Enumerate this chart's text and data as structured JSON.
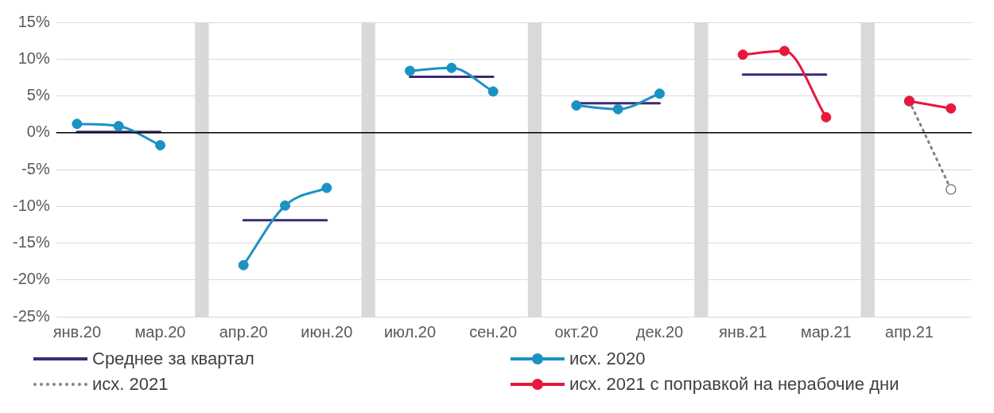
{
  "chart_data": {
    "type": "line",
    "categories": [
      "янв.20",
      null,
      "мар.20",
      null,
      "апр.20",
      null,
      "июн.20",
      null,
      "июл.20",
      null,
      "сен.20",
      null,
      "окт.20",
      null,
      "дек.20",
      null,
      "янв.21",
      null,
      "мар.21",
      null,
      "апр.21",
      null
    ],
    "series": [
      {
        "name": "Среднее за квартал",
        "color": "#3c2a77",
        "marker": "none",
        "values": [
          0.1,
          0.1,
          0.1,
          null,
          -11.9,
          -11.9,
          -11.9,
          null,
          7.6,
          7.6,
          7.6,
          null,
          4.0,
          4.0,
          4.0,
          null,
          7.9,
          7.9,
          7.9,
          null,
          null,
          null
        ]
      },
      {
        "name": "исх. 2020",
        "color": "#1a92c4",
        "marker": "circle",
        "values": [
          1.2,
          0.9,
          -1.7,
          null,
          -18.0,
          -9.9,
          -7.5,
          null,
          8.4,
          8.8,
          5.6,
          null,
          3.7,
          3.2,
          5.3,
          null,
          null,
          null,
          null,
          null,
          null,
          null
        ]
      },
      {
        "name": "исх. 2021",
        "color": "#808080",
        "marker": "circle",
        "line_style": "dotted",
        "values": [
          null,
          null,
          null,
          null,
          null,
          null,
          null,
          null,
          null,
          null,
          null,
          null,
          null,
          null,
          null,
          null,
          null,
          null,
          null,
          null,
          4.3,
          -7.7
        ]
      },
      {
        "name": "исх. 2021 с поправкой на нерабочие дни",
        "color": "#e8173c",
        "marker": "circle",
        "values": [
          null,
          null,
          null,
          null,
          null,
          null,
          null,
          null,
          null,
          null,
          null,
          null,
          null,
          null,
          null,
          null,
          10.6,
          11.1,
          2.1,
          null,
          4.3,
          3.3
        ]
      },
      {
        "type": "bar",
        "color": "#d9d9d9",
        "base": [
          null,
          null,
          null,
          -25,
          null,
          null,
          null,
          -25,
          null,
          null,
          null,
          -25,
          null,
          null,
          null,
          -25,
          null,
          null,
          null,
          -25,
          null,
          null
        ],
        "values": [
          null,
          null,
          null,
          40,
          null,
          null,
          null,
          40,
          null,
          null,
          null,
          40,
          null,
          null,
          null,
          40,
          null,
          null,
          null,
          40,
          null,
          null
        ]
      }
    ],
    "ylim": [
      -25,
      15
    ],
    "yticks": [
      {
        "value": -25,
        "label": "-25%"
      },
      {
        "value": -20,
        "label": "-20%"
      },
      {
        "value": -15,
        "label": "-15%"
      },
      {
        "value": -10,
        "label": "-10%"
      },
      {
        "value": -5,
        "label": "-5%"
      },
      {
        "value": 0,
        "label": "0%"
      },
      {
        "value": 5,
        "label": "5%"
      },
      {
        "value": 10,
        "label": "10%"
      },
      {
        "value": 15,
        "label": "15%"
      }
    ],
    "grid": "y",
    "legend": "bottom",
    "ref_lines": [
      {
        "axis": "y",
        "value": 0,
        "color": "#000000"
      }
    ]
  }
}
